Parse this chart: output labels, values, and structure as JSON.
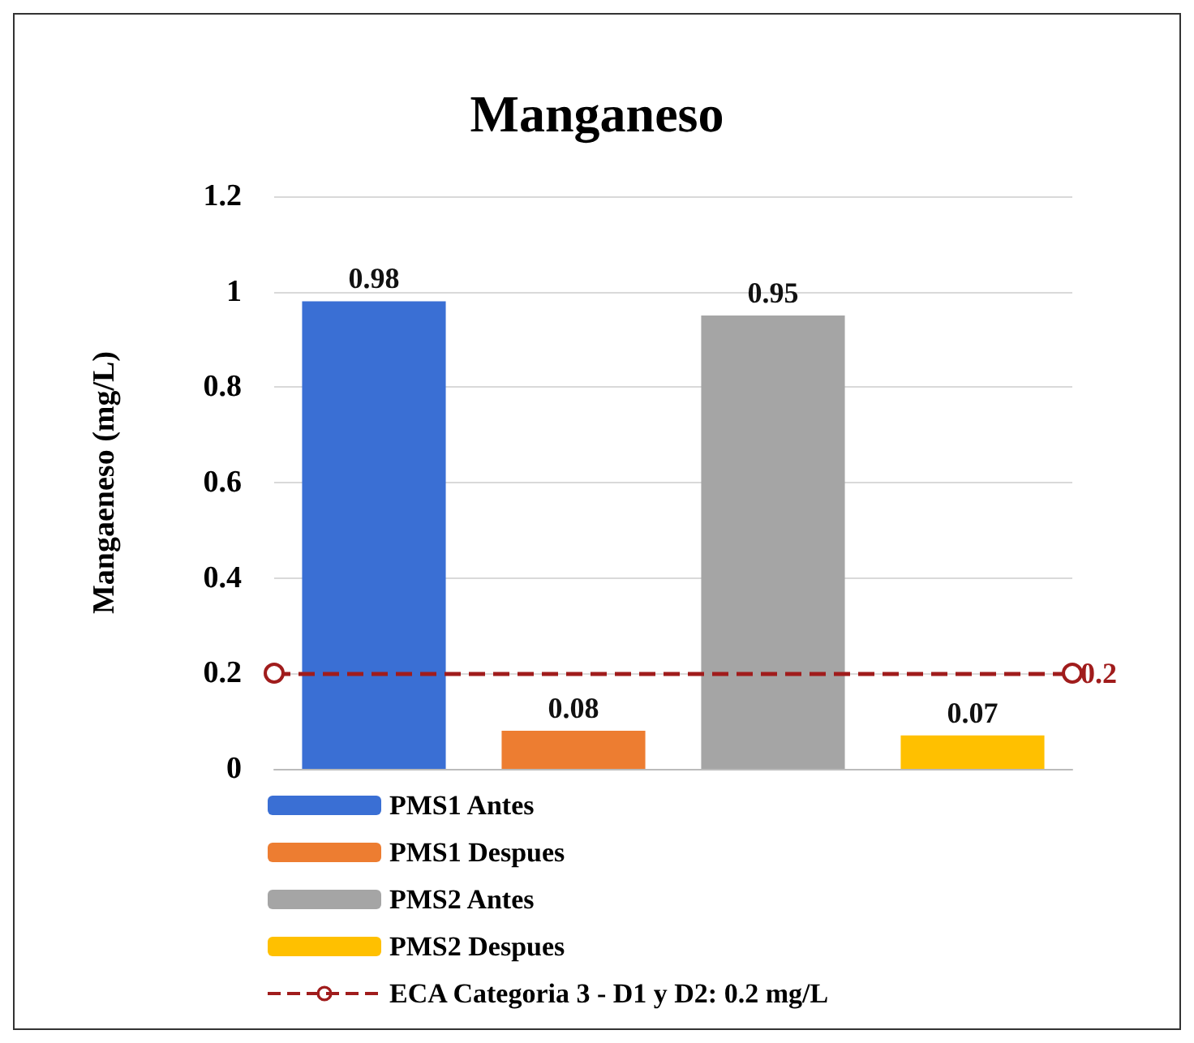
{
  "chart_data": {
    "type": "bar",
    "title": "Manganeso",
    "ylabel": "Mangaeneso (mg/L)",
    "categories": [
      null,
      null,
      null,
      null
    ],
    "series": [
      {
        "name": "PMS1 Antes",
        "color": "#3a6fd4",
        "values": [
          0.98,
          null,
          null,
          null
        ]
      },
      {
        "name": "PMS1 Despues",
        "color": "#ed7d31",
        "values": [
          null,
          0.08,
          null,
          null
        ]
      },
      {
        "name": "PMS2 Antes",
        "color": "#a5a5a5",
        "values": [
          null,
          null,
          0.95,
          null
        ]
      },
      {
        "name": "PMS2 Despues",
        "color": "#ffc000",
        "values": [
          null,
          null,
          null,
          0.07
        ]
      }
    ],
    "ref_lines": [
      {
        "axis": "y",
        "value": 0.2,
        "label": "ECA Categoria 3 - D1 y D2: 0.2 mg/L",
        "color": "#a01c1c",
        "line_style": "dashed"
      }
    ],
    "ylim": [
      0,
      1.2
    ],
    "yticks": [
      0,
      0.2,
      0.4,
      0.6,
      0.8,
      1,
      1.2
    ],
    "annotations": [
      "0.2"
    ],
    "marker": "circle",
    "data_labels": true,
    "grid": "y",
    "legend": "bottom"
  }
}
